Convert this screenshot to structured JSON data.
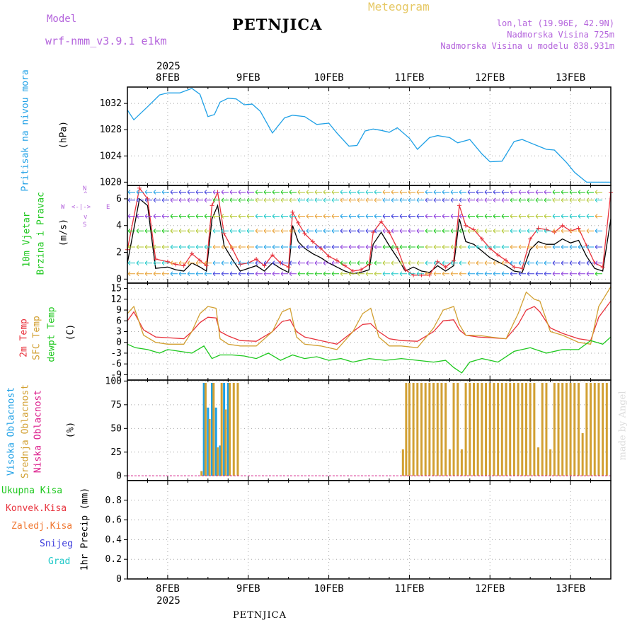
{
  "header": {
    "model_label": "Model",
    "model_name": "wrf-nmm_v3.9.1  e1km",
    "station": "PETNJICA",
    "meteogram_label": "Meteogram",
    "coords": "lon,lat (19.96E, 42.9N)",
    "elevation": "Nadmorska Visina 725m",
    "model_elevation": "Nadmorska Visina u modelu 838.931m",
    "footer_station": "PETNJICA",
    "credit": "made by Angel"
  },
  "colors": {
    "pressure": "#1ea0e6",
    "temp2m": "#e8323c",
    "sfc": "#d2a032",
    "dewpt": "#1ec81e",
    "high_cloud": "#1ea0e6",
    "mid_cloud": "#d2a032",
    "low_cloud": "#dc1e8c",
    "wind_speed": "#000000",
    "gust": "#e8323c",
    "precip_total": "#1ec81e",
    "precip_conv": "#e8323c",
    "precip_frz": "#f07832",
    "precip_snow": "#3c3cdc",
    "precip_grad": "#1ec8c8",
    "header_purple": "#b464dc",
    "header_gold": "#e6c864"
  },
  "axes": {
    "year": "2025",
    "days": [
      "8FEB",
      "9FEB",
      "10FEB",
      "11FEB",
      "12FEB",
      "13FEB"
    ]
  },
  "labels": {
    "pressure_title": "Pritisak na nivou mora",
    "pressure_unit": "(hPa)",
    "wind_title1": "10m Vjetar",
    "wind_title2": "Brzina i Pravac",
    "wind_unit": "(m/s)",
    "compass_n": "N",
    "compass_s": "S",
    "compass_w": "W",
    "compass_e": "E",
    "temp_2m": "2m Temp",
    "temp_sfc": "SFC Temp",
    "temp_dew": "dewpt Temp",
    "temp_unit": "(C)",
    "cloud_high": "Visoka Oblacnost",
    "cloud_mid": "Srednja Oblacnost",
    "cloud_low": "Niska Oblacnost",
    "cloud_unit": "(%)",
    "precip_total": "Ukupna Kisa",
    "precip_conv": "Konvek.Kisa",
    "precip_frz": "Zaledj.Kisa",
    "precip_snow": "Snijeg",
    "precip_grad": "Grad",
    "precip_unit": "1hr Precip (mm)"
  },
  "chart_data": [
    {
      "type": "line",
      "title": "",
      "ylabel": "Pritisak na nivou mora (hPa)",
      "x_unit": "day of Feb 2025",
      "ylim": [
        1019.5,
        1034.5
      ],
      "yticks": [
        1020,
        1024,
        1028,
        1032
      ],
      "grid": true,
      "series": [
        {
          "name": "Pritisak na nivou mora",
          "color": "#1ea0e6",
          "x": [
            7.5,
            7.58,
            7.75,
            7.9,
            8.0,
            8.15,
            8.3,
            8.4,
            8.5,
            8.58,
            8.65,
            8.75,
            8.85,
            8.95,
            9.05,
            9.15,
            9.3,
            9.45,
            9.55,
            9.7,
            9.85,
            10.0,
            10.1,
            10.25,
            10.35,
            10.45,
            10.55,
            10.65,
            10.75,
            10.85,
            11.0,
            11.1,
            11.25,
            11.35,
            11.5,
            11.6,
            11.75,
            11.9,
            12.0,
            12.15,
            12.3,
            12.4,
            12.5,
            12.6,
            12.7,
            12.8,
            12.95,
            13.05,
            13.2,
            13.3,
            13.42,
            13.5
          ],
          "values": [
            1031.0,
            1029.5,
            1031.5,
            1033.3,
            1033.6,
            1033.6,
            1034.3,
            1033.4,
            1030.0,
            1030.3,
            1032.2,
            1032.8,
            1032.7,
            1031.8,
            1031.9,
            1030.8,
            1027.5,
            1029.8,
            1030.2,
            1030.0,
            1028.8,
            1029.0,
            1027.5,
            1025.5,
            1025.6,
            1027.8,
            1028.1,
            1027.9,
            1027.6,
            1028.3,
            1026.7,
            1025.0,
            1026.8,
            1027.1,
            1026.8,
            1026.0,
            1026.5,
            1024.3,
            1023.1,
            1023.2,
            1026.2,
            1026.5,
            1026.0,
            1025.5,
            1025.0,
            1024.9,
            1023.0,
            1021.5,
            1020.0,
            1020.0,
            1020.0,
            1020.0
          ]
        }
      ]
    },
    {
      "type": "line",
      "title": "",
      "ylabel": "10m Vjetar Brzina i Pravac (m/s)",
      "x_unit": "day of Feb 2025",
      "ylim": [
        -0.3,
        7.0
      ],
      "yticks": [
        0,
        2,
        4,
        6
      ],
      "grid": true,
      "series": [
        {
          "name": "Brzina",
          "color": "#000000",
          "x": [
            7.5,
            7.65,
            7.75,
            7.85,
            8.0,
            8.1,
            8.2,
            8.3,
            8.4,
            8.48,
            8.55,
            8.62,
            8.7,
            8.8,
            8.9,
            9.0,
            9.1,
            9.2,
            9.3,
            9.4,
            9.5,
            9.55,
            9.62,
            9.7,
            9.8,
            9.9,
            10.0,
            10.1,
            10.2,
            10.3,
            10.4,
            10.5,
            10.55,
            10.65,
            10.75,
            10.85,
            10.95,
            11.05,
            11.15,
            11.25,
            11.35,
            11.45,
            11.55,
            11.62,
            11.7,
            11.8,
            11.9,
            12.0,
            12.1,
            12.2,
            12.3,
            12.4,
            12.5,
            12.6,
            12.7,
            12.8,
            12.9,
            13.0,
            13.1,
            13.2,
            13.3,
            13.4,
            13.5
          ],
          "values": [
            1.2,
            6.0,
            5.5,
            0.8,
            0.9,
            0.7,
            0.6,
            1.2,
            0.9,
            0.6,
            4.5,
            5.5,
            2.5,
            1.5,
            0.6,
            0.8,
            1.0,
            0.6,
            1.2,
            0.8,
            0.5,
            4.0,
            2.8,
            2.3,
            1.9,
            1.6,
            1.2,
            0.9,
            0.6,
            0.4,
            0.5,
            0.7,
            2.6,
            3.5,
            2.5,
            1.6,
            0.6,
            0.9,
            0.6,
            0.5,
            1.0,
            0.6,
            1.0,
            4.5,
            2.8,
            2.6,
            2.1,
            1.6,
            1.3,
            1.0,
            0.6,
            0.5,
            2.2,
            2.8,
            2.6,
            2.6,
            3.0,
            2.7,
            2.9,
            1.7,
            0.8,
            0.6,
            4.5
          ]
        },
        {
          "name": "Udar",
          "color": "#e8323c",
          "x": [
            7.5,
            7.65,
            7.75,
            7.85,
            8.0,
            8.1,
            8.2,
            8.3,
            8.4,
            8.48,
            8.55,
            8.62,
            8.7,
            8.8,
            8.9,
            9.0,
            9.1,
            9.2,
            9.3,
            9.4,
            9.5,
            9.55,
            9.62,
            9.7,
            9.8,
            9.9,
            10.0,
            10.1,
            10.2,
            10.3,
            10.4,
            10.5,
            10.55,
            10.65,
            10.75,
            10.85,
            10.95,
            11.05,
            11.15,
            11.25,
            11.35,
            11.45,
            11.55,
            11.62,
            11.7,
            11.8,
            11.9,
            12.0,
            12.1,
            12.2,
            12.3,
            12.4,
            12.5,
            12.6,
            12.7,
            12.8,
            12.9,
            13.0,
            13.1,
            13.2,
            13.3,
            13.4,
            13.5
          ],
          "values": [
            2.2,
            6.8,
            6.0,
            1.5,
            1.3,
            1.1,
            1.0,
            1.9,
            1.4,
            1.0,
            5.5,
            6.5,
            3.4,
            2.3,
            1.1,
            1.2,
            1.5,
            1.0,
            1.8,
            1.2,
            0.9,
            5.0,
            4.2,
            3.4,
            2.8,
            2.3,
            1.7,
            1.4,
            1.0,
            0.6,
            0.7,
            1.1,
            3.5,
            4.3,
            3.5,
            2.3,
            0.7,
            0.3,
            0.3,
            0.3,
            1.3,
            0.9,
            1.4,
            5.5,
            4.0,
            3.7,
            3.0,
            2.3,
            1.8,
            1.4,
            0.9,
            0.8,
            3.0,
            3.8,
            3.7,
            3.5,
            4.0,
            3.6,
            3.8,
            2.5,
            1.2,
            0.9,
            6.5
          ]
        }
      ]
    },
    {
      "type": "line",
      "title": "",
      "ylabel": "(C)",
      "x_unit": "day of Feb 2025",
      "ylim": [
        -10.5,
        16.5
      ],
      "yticks": [
        -9,
        -6,
        -3,
        0,
        3,
        6,
        9,
        12,
        15
      ],
      "grid": true,
      "series": [
        {
          "name": "2m Temp",
          "color": "#e8323c",
          "x": [
            7.5,
            7.58,
            7.7,
            7.85,
            8.0,
            8.2,
            8.3,
            8.4,
            8.5,
            8.6,
            8.65,
            8.75,
            8.9,
            9.1,
            9.3,
            9.42,
            9.52,
            9.6,
            9.7,
            9.9,
            10.1,
            10.3,
            10.42,
            10.52,
            10.62,
            10.75,
            10.9,
            11.1,
            11.3,
            11.42,
            11.55,
            11.62,
            11.7,
            11.85,
            12.0,
            12.2,
            12.35,
            12.45,
            12.55,
            12.62,
            12.75,
            12.9,
            13.1,
            13.25,
            13.35,
            13.5
          ],
          "values": [
            6.0,
            8.5,
            3.5,
            1.5,
            1.3,
            1.0,
            3.0,
            5.5,
            7.0,
            6.8,
            3.0,
            1.8,
            0.5,
            0.3,
            3.0,
            5.8,
            6.3,
            3.0,
            1.5,
            0.5,
            -0.5,
            3.0,
            5.0,
            5.2,
            3.0,
            1.0,
            0.5,
            0.3,
            3.0,
            6.0,
            6.3,
            3.5,
            2.0,
            1.5,
            1.3,
            1.0,
            5.0,
            9.0,
            10.0,
            8.5,
            4.0,
            2.5,
            1.0,
            0.5,
            7.0,
            11.5
          ]
        },
        {
          "name": "SFC Temp",
          "color": "#d2a032",
          "x": [
            7.5,
            7.58,
            7.7,
            7.85,
            8.0,
            8.2,
            8.3,
            8.4,
            8.5,
            8.6,
            8.65,
            8.75,
            8.9,
            9.1,
            9.3,
            9.42,
            9.52,
            9.6,
            9.7,
            9.9,
            10.1,
            10.3,
            10.42,
            10.52,
            10.62,
            10.75,
            10.9,
            11.1,
            11.3,
            11.42,
            11.55,
            11.62,
            11.7,
            11.85,
            12.0,
            12.2,
            12.35,
            12.45,
            12.55,
            12.62,
            12.75,
            12.9,
            13.1,
            13.25,
            13.35,
            13.5
          ],
          "values": [
            8.0,
            10.0,
            2.0,
            0.0,
            -0.5,
            -0.5,
            3.0,
            8.0,
            10.0,
            9.5,
            1.0,
            -0.5,
            -1.0,
            -1.0,
            3.0,
            8.5,
            9.5,
            1.5,
            -0.5,
            -1.0,
            -2.0,
            3.0,
            8.0,
            9.5,
            1.5,
            -1.0,
            -1.0,
            -1.5,
            4.0,
            9.0,
            10.0,
            5.0,
            2.0,
            2.0,
            1.5,
            1.0,
            8.0,
            14.0,
            12.0,
            11.5,
            3.0,
            2.0,
            0.0,
            -0.5,
            10.0,
            15.5
          ]
        },
        {
          "name": "dewpt Temp",
          "color": "#1ec81e",
          "x": [
            7.5,
            7.6,
            7.75,
            7.9,
            8.0,
            8.15,
            8.3,
            8.45,
            8.55,
            8.65,
            8.8,
            8.95,
            9.1,
            9.25,
            9.4,
            9.55,
            9.7,
            9.85,
            10.0,
            10.15,
            10.3,
            10.5,
            10.7,
            10.9,
            11.1,
            11.3,
            11.45,
            11.55,
            11.65,
            11.75,
            11.9,
            12.1,
            12.3,
            12.5,
            12.7,
            12.9,
            13.1,
            13.25,
            13.4,
            13.5
          ],
          "values": [
            -0.5,
            -1.5,
            -2.0,
            -3.0,
            -2.0,
            -2.5,
            -3.0,
            -1.0,
            -4.5,
            -3.5,
            -3.5,
            -3.8,
            -4.5,
            -3.0,
            -5.0,
            -3.5,
            -4.5,
            -4.0,
            -5.0,
            -4.5,
            -5.5,
            -4.5,
            -5.0,
            -4.5,
            -5.0,
            -5.5,
            -5.0,
            -7.0,
            -8.5,
            -5.5,
            -4.5,
            -5.5,
            -2.5,
            -1.5,
            -3.0,
            -2.0,
            -2.0,
            0.5,
            -0.5,
            1.5
          ]
        }
      ]
    },
    {
      "type": "bar",
      "title": "",
      "ylabel": "(%)",
      "x_unit": "day of Feb 2025",
      "ylim": [
        -5,
        101
      ],
      "yticks": [
        0,
        25,
        50,
        75,
        100
      ],
      "grid": true,
      "series": [
        {
          "name": "Visoka Oblacnost",
          "color": "#1ea0e6",
          "x": [
            8.45,
            8.5,
            8.55,
            8.6,
            8.65,
            8.7,
            8.75
          ],
          "values": [
            98,
            72,
            98,
            72,
            32,
            98,
            98
          ]
        },
        {
          "name": "Srednja Oblacnost",
          "color": "#d2a032",
          "x": [
            8.42,
            8.47,
            8.52,
            8.57,
            8.62,
            8.67,
            8.72,
            8.77,
            8.82,
            8.87,
            10.92,
            10.96,
            11.0,
            11.05,
            11.1,
            11.15,
            11.2,
            11.25,
            11.3,
            11.35,
            11.4,
            11.45,
            11.5,
            11.55,
            11.6,
            11.65,
            11.7,
            11.75,
            11.8,
            11.85,
            11.9,
            11.95,
            12.0,
            12.05,
            12.1,
            12.15,
            12.2,
            12.25,
            12.3,
            12.35,
            12.4,
            12.45,
            12.5,
            12.55,
            12.6,
            12.65,
            12.7,
            12.75,
            12.8,
            12.85,
            12.9,
            12.95,
            13.0,
            13.05,
            13.1,
            13.15,
            13.2,
            13.25,
            13.3,
            13.35,
            13.4,
            13.45
          ],
          "values": [
            5,
            98,
            60,
            98,
            30,
            98,
            70,
            98,
            98,
            98,
            28,
            98,
            98,
            98,
            98,
            98,
            98,
            98,
            98,
            98,
            98,
            98,
            28,
            98,
            98,
            28,
            98,
            98,
            98,
            98,
            98,
            98,
            98,
            98,
            98,
            98,
            98,
            98,
            98,
            98,
            98,
            98,
            98,
            98,
            30,
            98,
            98,
            28,
            98,
            98,
            98,
            98,
            98,
            98,
            98,
            45,
            98,
            98,
            98,
            98,
            98,
            98
          ]
        },
        {
          "name": "Niska Oblacnost",
          "color": "#dc1e8c",
          "x": [],
          "values": []
        }
      ]
    },
    {
      "type": "bar",
      "title": "",
      "ylabel": "1hr Precip (mm)",
      "x_unit": "day of Feb 2025",
      "ylim": [
        0,
        1.0
      ],
      "yticks": [
        0,
        0.2,
        0.4,
        0.6,
        0.8
      ],
      "grid": true,
      "series": [
        {
          "name": "Ukupna Kisa",
          "color": "#1ec81e",
          "x": [],
          "values": []
        },
        {
          "name": "Konvek.Kisa",
          "color": "#e8323c",
          "x": [],
          "values": []
        },
        {
          "name": "Zaledj.Kisa",
          "color": "#f07832",
          "x": [],
          "values": []
        },
        {
          "name": "Snijeg",
          "color": "#3c3cdc",
          "x": [],
          "values": []
        },
        {
          "name": "Grad",
          "color": "#1ec8c8",
          "x": [],
          "values": []
        }
      ]
    }
  ]
}
